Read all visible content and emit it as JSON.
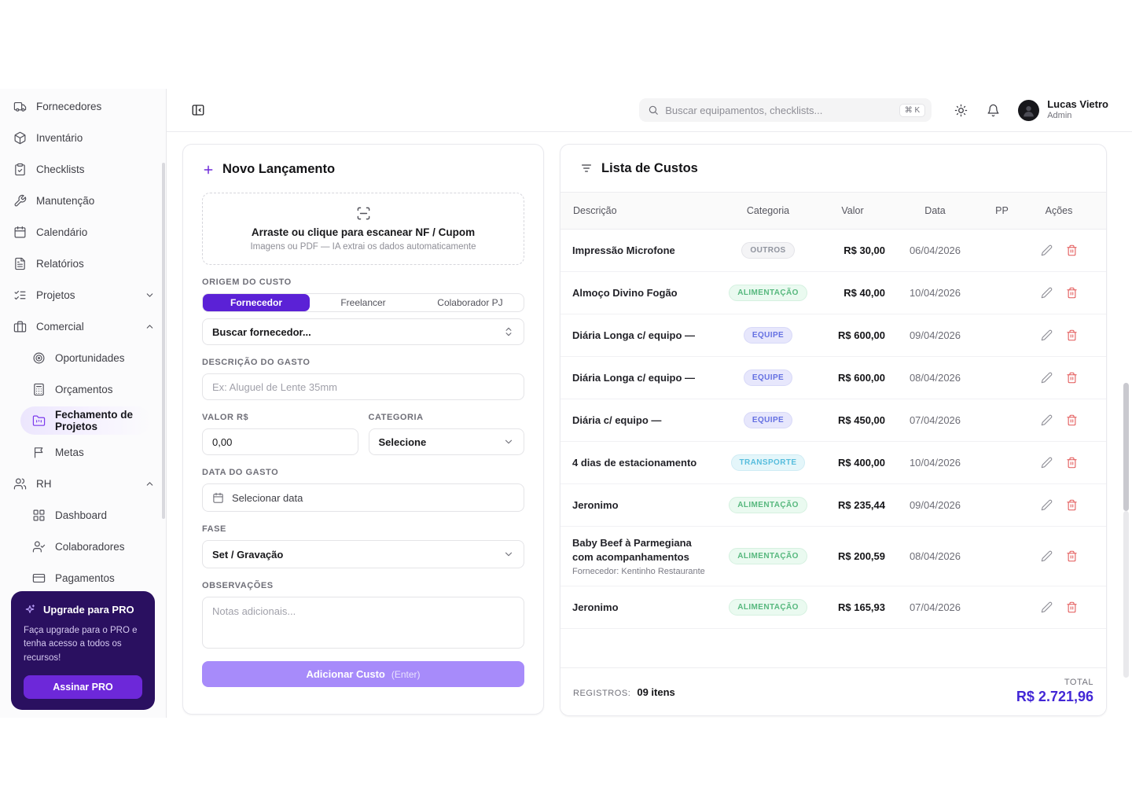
{
  "topbar": {
    "search_placeholder": "Buscar equipamentos, checklists...",
    "shortcut": "⌘ K",
    "user_name": "Lucas Vietro",
    "user_role": "Admin"
  },
  "sidebar": {
    "items": [
      {
        "label": "Fornecedores",
        "icon": "truck-icon"
      },
      {
        "label": "Inventário",
        "icon": "package-icon"
      },
      {
        "label": "Checklists",
        "icon": "clipboard-check-icon"
      },
      {
        "label": "Manutenção",
        "icon": "wrench-icon"
      },
      {
        "label": "Calendário",
        "icon": "calendar-icon"
      },
      {
        "label": "Relatórios",
        "icon": "report-icon"
      },
      {
        "label": "Projetos",
        "icon": "list-checks-icon",
        "chevron": "down"
      },
      {
        "label": "Comercial",
        "icon": "briefcase-icon",
        "chevron": "up"
      },
      {
        "label": "Oportunidades",
        "icon": "target-icon",
        "sub": true
      },
      {
        "label": "Orçamentos",
        "icon": "calculator-icon",
        "sub": true
      },
      {
        "label": "Fechamento de Projetos",
        "icon": "folder-icon",
        "sub": true,
        "active": true
      },
      {
        "label": "Metas",
        "icon": "flag-icon",
        "sub": true
      },
      {
        "label": "RH",
        "icon": "users-icon",
        "chevron": "up"
      },
      {
        "label": "Dashboard",
        "icon": "grid-icon",
        "sub": true
      },
      {
        "label": "Colaboradores",
        "icon": "user-check-icon",
        "sub": true
      },
      {
        "label": "Pagamentos",
        "icon": "credit-card-icon",
        "sub": true
      }
    ],
    "upgrade": {
      "title": "Upgrade para PRO",
      "description": "Faça upgrade para o PRO e tenha acesso a todos os recursos!",
      "button_label": "Assinar PRO"
    }
  },
  "form": {
    "title": "Novo Lançamento",
    "dropzone": {
      "title": "Arraste ou clique para escanear NF / Cupom",
      "subtitle": "Imagens ou PDF — IA extrai os dados automaticamente"
    },
    "origem": {
      "label": "ORIGEM DO CUSTO",
      "options": [
        "Fornecedor",
        "Freelancer",
        "Colaborador PJ"
      ],
      "selected": "Fornecedor"
    },
    "fornecedor": {
      "placeholder": "Buscar fornecedor..."
    },
    "descricao": {
      "label": "DESCRIÇÃO DO GASTO",
      "placeholder": "Ex: Aluguel de Lente 35mm"
    },
    "valor": {
      "label": "VALOR R$",
      "value": "0,00"
    },
    "categoria": {
      "label": "CATEGORIA",
      "value": "Selecione"
    },
    "data": {
      "label": "DATA DO GASTO",
      "value": "Selecionar data"
    },
    "fase": {
      "label": "FASE",
      "value": "Set / Gravação"
    },
    "observacoes": {
      "label": "OBSERVAÇÕES",
      "placeholder": "Notas adicionais..."
    },
    "submit": {
      "label": "Adicionar Custo",
      "hint": "(Enter)"
    }
  },
  "table": {
    "title": "Lista de Custos",
    "columns": [
      "Descrição",
      "Categoria",
      "Valor",
      "Data",
      "PP",
      "Ações"
    ],
    "rows": [
      {
        "description": "Impressão Microfone",
        "category": "OUTROS",
        "value": "R$ 30,00",
        "date": "06/04/2026"
      },
      {
        "description": "Almoço Divino Fogão",
        "category": "ALIMENTAÇÃO",
        "value": "R$ 40,00",
        "date": "10/04/2026"
      },
      {
        "description": "Diária Longa c/ equipo —",
        "category": "EQUIPE",
        "value": "R$ 600,00",
        "date": "09/04/2026"
      },
      {
        "description": "Diária Longa c/ equipo —",
        "category": "EQUIPE",
        "value": "R$ 600,00",
        "date": "08/04/2026"
      },
      {
        "description": "Diária c/ equipo —",
        "category": "EQUIPE",
        "value": "R$ 450,00",
        "date": "07/04/2026"
      },
      {
        "description": "4 dias de estacionamento",
        "category": "TRANSPORTE",
        "value": "R$ 400,00",
        "date": "10/04/2026"
      },
      {
        "description": "Jeronimo",
        "category": "ALIMENTAÇÃO",
        "value": "R$ 235,44",
        "date": "09/04/2026"
      },
      {
        "description": "Baby Beef à Parmegiana com acompanhamentos",
        "supplier": "Fornecedor: Kentinho Restaurante",
        "category": "ALIMENTAÇÃO",
        "value": "R$ 200,59",
        "date": "08/04/2026"
      },
      {
        "description": "Jeronimo",
        "category": "ALIMENTAÇÃO",
        "value": "R$ 165,93",
        "date": "07/04/2026"
      }
    ],
    "footer": {
      "registros_label": "REGISTROS:",
      "registros_value": "09 itens",
      "total_label": "TOTAL",
      "total_value": "R$ 2.721,96"
    }
  },
  "colors": {
    "primary": "#5b21d6",
    "submit_button": "#a78bfa",
    "upgrade_card_bg": "#2a1060",
    "upgrade_button": "#6d28d9",
    "total_value": "#4227d6",
    "delete_icon": "#e25555",
    "badges": {
      "OUTROS": {
        "bg": "#f4f4f6",
        "border": "#e4e4e9",
        "text": "#8f939e"
      },
      "ALIMENTAÇÃO": {
        "bg": "#eafaf0",
        "border": "#d5f1e0",
        "text": "#57b87e"
      },
      "EQUIPE": {
        "bg": "#e7e7fc",
        "border": "#d8d9f8",
        "text": "#6470e2"
      },
      "TRANSPORTE": {
        "bg": "#e4f6fa",
        "border": "#cfecf4",
        "text": "#57bddd"
      }
    }
  }
}
